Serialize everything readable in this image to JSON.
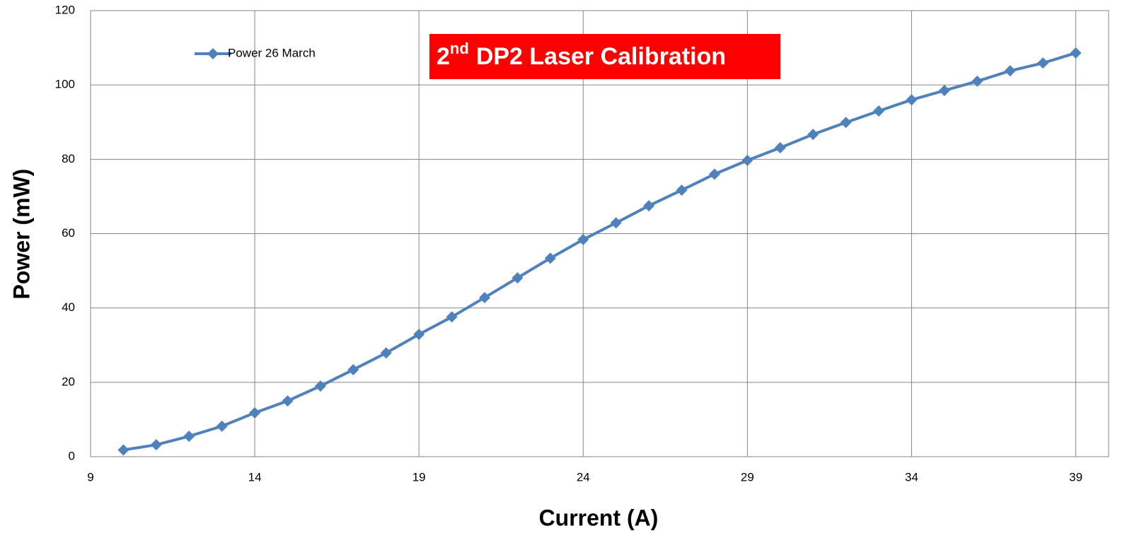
{
  "chart_data": {
    "type": "line",
    "title": {
      "number": "2",
      "superscript": "nd",
      "text": "DP2 Laser Calibration"
    },
    "x_label": "Current (A)",
    "y_label": "Power (mW)",
    "x": [
      10,
      11,
      12,
      13,
      14,
      15,
      16,
      17,
      18,
      19,
      20,
      21,
      22,
      23,
      24,
      25,
      26,
      27,
      28,
      29,
      30,
      31,
      32,
      33,
      34,
      35,
      36,
      37,
      38,
      39
    ],
    "series": [
      {
        "name": "Power 26 March",
        "color": "#4f81bd",
        "values": [
          1.8,
          3.2,
          5.5,
          8.2,
          11.8,
          15.0,
          19.0,
          23.4,
          27.9,
          32.9,
          37.6,
          42.8,
          48.1,
          53.4,
          58.4,
          62.9,
          67.5,
          71.7,
          76.0,
          79.7,
          83.1,
          86.7,
          89.9,
          93.0,
          96.0,
          98.5,
          101.0,
          103.8,
          105.9,
          108.6
        ]
      }
    ],
    "xlim": [
      9,
      40
    ],
    "xticks": [
      9,
      14,
      19,
      24,
      29,
      34,
      39
    ],
    "ylim": [
      0,
      120
    ],
    "yticks": [
      0,
      20,
      40,
      60,
      80,
      100,
      120
    ],
    "grid": true,
    "title_color": "#ff0000"
  }
}
